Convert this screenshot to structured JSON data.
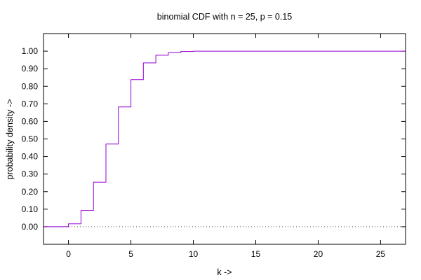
{
  "chart_data": {
    "type": "line",
    "subtype": "step",
    "title": "binomial CDF with n = 25, p = 0.15",
    "xlabel": "k ->",
    "ylabel": "probability density ->",
    "xlim": [
      -2,
      27
    ],
    "ylim": [
      -0.1,
      1.1
    ],
    "xticks": [
      0,
      5,
      10,
      15,
      20,
      25
    ],
    "yticks": [
      0.0,
      0.1,
      0.2,
      0.3,
      0.4,
      0.5,
      0.6,
      0.7,
      0.8,
      0.9,
      1.0
    ],
    "ytick_labels": [
      "0.00",
      "0.10",
      "0.20",
      "0.30",
      "0.40",
      "0.50",
      "0.60",
      "0.70",
      "0.80",
      "0.90",
      "1.00"
    ],
    "zero_line": true,
    "series": [
      {
        "color": "#9400d3",
        "x": [
          -2,
          0,
          1,
          2,
          3,
          4,
          5,
          6,
          7,
          8,
          9,
          10,
          27
        ],
        "y": [
          0,
          0.017,
          0.093,
          0.254,
          0.471,
          0.682,
          0.838,
          0.933,
          0.977,
          0.992,
          0.998,
          1.0,
          1.0
        ]
      }
    ]
  }
}
